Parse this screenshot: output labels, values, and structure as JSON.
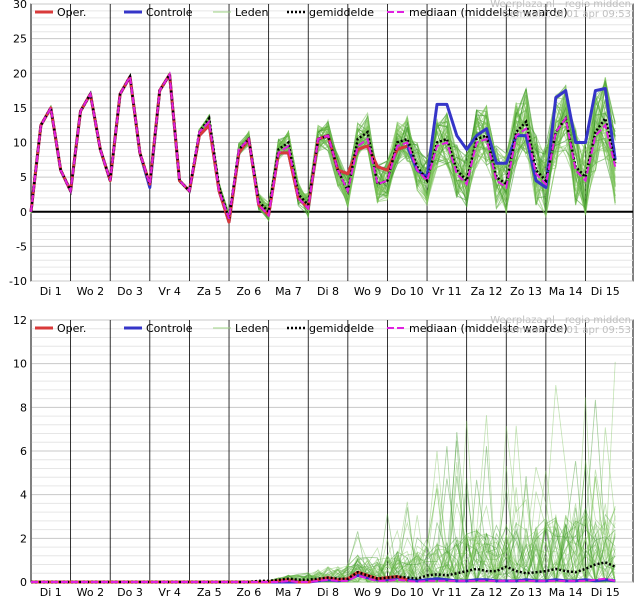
{
  "chart_data": [
    {
      "type": "line",
      "title": "",
      "source_text": "Weerplaza.nl - regio midden",
      "made_text": "Gemaakt: di 01 apr 09:53",
      "ylim": [
        -10,
        30
      ],
      "yticks": [
        -10,
        -5,
        0,
        5,
        10,
        15,
        20,
        25,
        30
      ],
      "day_labels": [
        "Di 1",
        "Wo 2",
        "Do 3",
        "Vr 4",
        "Za 5",
        "Zo 6",
        "Ma 7",
        "Di 8",
        "Wo 9",
        "Do 10",
        "Vr 11",
        "Za 12",
        "Zo 13",
        "Ma 14",
        "Di 15"
      ],
      "legend": {
        "oper": "Oper.",
        "controle": "Controle",
        "leden": "Leden",
        "gemiddelde": "gemiddelde",
        "mediaan": "mediaan (middelste waarde)"
      },
      "grid": true,
      "x_step_days": 0.25,
      "series": [
        {
          "name": "Oper.",
          "color": "#d93a3a",
          "values": [
            0,
            12.5,
            15,
            6,
            3,
            14.5,
            17,
            9,
            4.5,
            17,
            19.5,
            8.5,
            4,
            17.5,
            19.8,
            4.5,
            3,
            11,
            12.5,
            3,
            -1.5,
            8.5,
            10.5,
            1,
            -0.5,
            8.5,
            8.5,
            2,
            0.5,
            10.5,
            11,
            6,
            5.5,
            9,
            9.5,
            6.5,
            6,
            9,
            9.5
          ]
        },
        {
          "name": "Controle",
          "color": "#3535c8",
          "values": [
            0,
            12.5,
            15,
            6,
            3,
            14.5,
            17,
            9,
            4.5,
            17,
            19.5,
            8.5,
            3.5,
            17.5,
            19.8,
            4.5,
            3,
            11,
            12.5,
            3,
            -1.5,
            8.5,
            10.5,
            1,
            -0.5,
            8.5,
            8.5,
            2,
            0.5,
            10.5,
            11,
            6,
            5.5,
            9,
            9.5,
            6.5,
            6,
            9,
            9.5,
            6,
            5,
            15.5,
            15.5,
            11,
            9,
            11,
            12,
            7,
            7,
            11,
            11,
            4.5,
            3.5,
            16.5,
            17.5,
            10,
            10,
            17.5,
            17.8,
            7.5
          ]
        },
        {
          "name": "gemiddelde",
          "color": "#000000",
          "values": [
            0,
            12.5,
            15,
            6,
            3,
            14.5,
            17,
            9,
            4.5,
            17,
            19.5,
            8.5,
            4,
            17.5,
            19.8,
            4.5,
            3,
            11.5,
            13.5,
            3.5,
            -1,
            9,
            10.5,
            1.5,
            0,
            9,
            10,
            2.5,
            1,
            10.5,
            11,
            6,
            3,
            10.5,
            11.5,
            4,
            4.5,
            10,
            10.5,
            6.5,
            4.5,
            10,
            10.5,
            6,
            4.5,
            10.5,
            11,
            5,
            4,
            11.5,
            13,
            6,
            4.5,
            11.5,
            13.5,
            6.5,
            5,
            11.5,
            13.5,
            7
          ]
        },
        {
          "name": "mediaan (middelste waarde)",
          "color": "#e020e0",
          "values": [
            0,
            12.5,
            15,
            6,
            3,
            14.5,
            17,
            9,
            4.5,
            17,
            19.5,
            8.5,
            4,
            17.5,
            19.8,
            4.5,
            3,
            11.5,
            13,
            3,
            -1,
            9,
            10.5,
            1,
            -0.5,
            8.5,
            9.5,
            2,
            0.5,
            10.5,
            11,
            6,
            3,
            9.5,
            10.5,
            4,
            4.5,
            9.5,
            10,
            6,
            4.5,
            9.5,
            10,
            5.5,
            4,
            10,
            10.5,
            4.5,
            3.5,
            11,
            12,
            5.5,
            4,
            11.5,
            13.5,
            6,
            4.5,
            11,
            12.5,
            6.5
          ]
        }
      ]
    },
    {
      "type": "line",
      "title": "",
      "source_text": "Weerplaza.nl - regio midden",
      "made_text": "Gemaakt: di 01 apr 09:53",
      "ylim": [
        0,
        12
      ],
      "yticks": [
        0,
        2,
        4,
        6,
        8,
        10,
        12
      ],
      "day_labels": [
        "Di 1",
        "Wo 2",
        "Do 3",
        "Vr 4",
        "Za 5",
        "Zo 6",
        "Ma 7",
        "Di 8",
        "Wo 9",
        "Do 10",
        "Vr 11",
        "Za 12",
        "Zo 13",
        "Ma 14",
        "Di 15"
      ],
      "legend": {
        "oper": "Oper.",
        "controle": "Controle",
        "leden": "Leden",
        "gemiddelde": "gemiddelde",
        "mediaan": "mediaan (middelste waarde)"
      },
      "grid": true,
      "x_step_days": 0.25,
      "series": [
        {
          "name": "Oper.",
          "color": "#d93a3a",
          "values": [
            0,
            0,
            0,
            0,
            0,
            0,
            0,
            0,
            0,
            0,
            0,
            0,
            0,
            0,
            0,
            0,
            0,
            0,
            0,
            0,
            0,
            0,
            0,
            0,
            0,
            0.05,
            0.1,
            0,
            0,
            0.1,
            0.2,
            0.1,
            0.15,
            0.45,
            0.3,
            0.15,
            0.2,
            0.25,
            0.1
          ]
        },
        {
          "name": "Controle",
          "color": "#3535c8",
          "values": [
            0,
            0,
            0,
            0,
            0,
            0,
            0,
            0,
            0,
            0,
            0,
            0,
            0,
            0,
            0,
            0,
            0,
            0,
            0,
            0,
            0,
            0,
            0,
            0,
            0,
            0,
            0,
            0,
            0,
            0.05,
            0.1,
            0.05,
            0.1,
            0.3,
            0.2,
            0.1,
            0.1,
            0.2,
            0.1,
            0.05,
            0.1,
            0.15,
            0.1,
            0.05,
            0.05,
            0.1,
            0.1,
            0.05,
            0.05,
            0.05,
            0.1,
            0.05,
            0.05,
            0.1,
            0.05,
            0.05,
            0.1,
            0.05,
            0.1,
            0.05
          ]
        },
        {
          "name": "gemiddelde",
          "color": "#000000",
          "values": [
            0,
            0,
            0,
            0,
            0,
            0,
            0,
            0,
            0,
            0,
            0,
            0,
            0,
            0,
            0,
            0,
            0,
            0,
            0,
            0,
            0,
            0,
            0,
            0.05,
            0.05,
            0.1,
            0.15,
            0.1,
            0.1,
            0.15,
            0.2,
            0.15,
            0.15,
            0.45,
            0.3,
            0.15,
            0.2,
            0.25,
            0.2,
            0.15,
            0.3,
            0.35,
            0.3,
            0.4,
            0.5,
            0.6,
            0.5,
            0.5,
            0.7,
            0.5,
            0.4,
            0.45,
            0.5,
            0.6,
            0.5,
            0.45,
            0.6,
            0.8,
            0.9,
            0.7
          ]
        },
        {
          "name": "mediaan (middelste waarde)",
          "color": "#e020e0",
          "values": [
            0,
            0,
            0,
            0,
            0,
            0,
            0,
            0,
            0,
            0,
            0,
            0,
            0,
            0,
            0,
            0,
            0,
            0,
            0,
            0,
            0,
            0,
            0,
            0,
            0,
            0,
            0.05,
            0,
            0,
            0.05,
            0.1,
            0.05,
            0.05,
            0.3,
            0.15,
            0.05,
            0.05,
            0.1,
            0.05,
            0.02,
            0.05,
            0.05,
            0.05,
            0.05,
            0.05,
            0.05,
            0.05,
            0.05,
            0.05,
            0.05,
            0.05,
            0.05,
            0.05,
            0.05,
            0.05,
            0.05,
            0.05,
            0.1,
            0.15,
            0.05
          ]
        }
      ]
    }
  ]
}
